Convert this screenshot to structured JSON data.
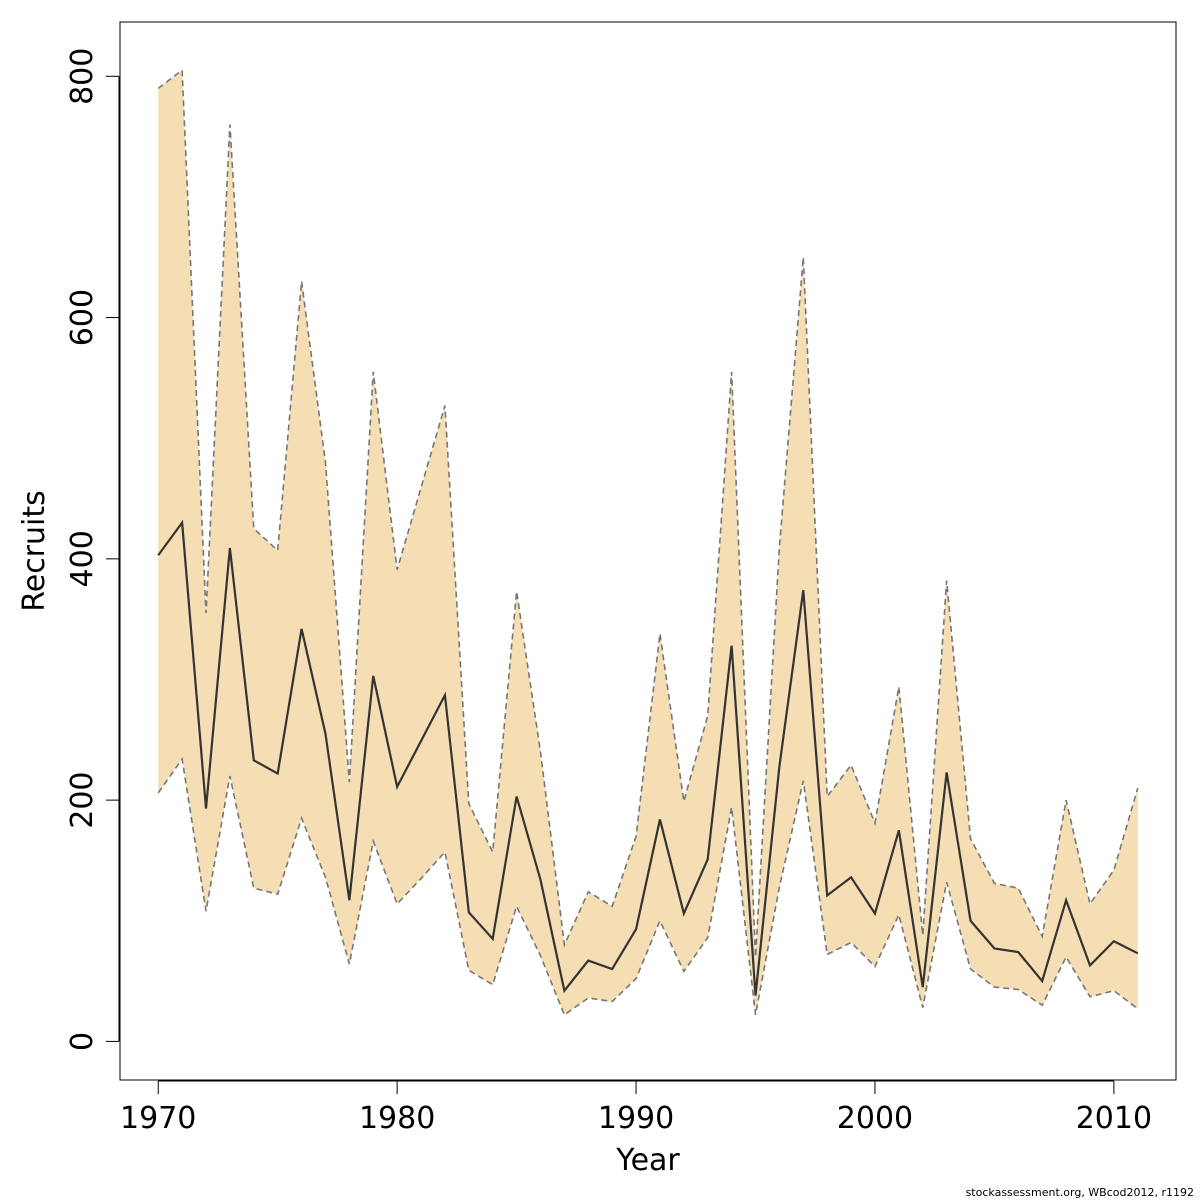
{
  "chart_data": {
    "type": "line",
    "title": "",
    "xlabel": "Year",
    "ylabel": "Recruits",
    "xlim": [
      1968.4,
      2012.6
    ],
    "ylim": [
      -32,
      845
    ],
    "x_ticks": [
      1970,
      1980,
      1990,
      2000,
      2010
    ],
    "y_ticks": [
      0,
      200,
      400,
      600,
      800
    ],
    "x_tick_labels": [
      "1970",
      "1980",
      "1990",
      "2000",
      "2010"
    ],
    "y_tick_labels": [
      "0",
      "200",
      "400",
      "600",
      "800"
    ],
    "grid": false,
    "legend": "none",
    "band_color": "#F5DEB3",
    "bound_line_color": "#777777",
    "estimate_line_color": "#333333",
    "x": [
      1970,
      1971,
      1972,
      1973,
      1974,
      1975,
      1976,
      1977,
      1978,
      1979,
      1980,
      1981,
      1982,
      1983,
      1984,
      1985,
      1986,
      1987,
      1988,
      1989,
      1990,
      1991,
      1992,
      1993,
      1994,
      1995,
      1996,
      1997,
      1998,
      1999,
      2000,
      2001,
      2002,
      2003,
      2004,
      2005,
      2006,
      2007,
      2008,
      2009,
      2010,
      2011
    ],
    "series": [
      {
        "role": "estimate",
        "values": [
          403,
          430,
          193,
          409,
          233,
          222,
          342,
          255,
          117,
          303,
          211,
          249,
          287,
          107,
          85,
          203,
          134,
          42,
          67,
          60,
          93,
          184,
          106,
          151,
          328,
          38,
          228,
          374,
          121,
          136,
          106,
          175,
          45,
          223,
          100,
          77,
          74,
          50,
          117,
          63,
          83,
          73
        ]
      },
      {
        "role": "upper",
        "values": [
          790,
          805,
          355,
          760,
          425,
          407,
          630,
          480,
          215,
          555,
          391,
          459,
          527,
          197,
          157,
          373,
          240,
          80,
          124,
          112,
          170,
          338,
          199,
          270,
          555,
          70,
          410,
          650,
          203,
          229,
          181,
          294,
          88,
          382,
          168,
          131,
          127,
          87,
          200,
          114,
          142,
          210
        ]
      },
      {
        "role": "lower",
        "values": [
          206,
          234,
          108,
          220,
          127,
          122,
          185,
          136,
          64,
          166,
          114,
          135,
          157,
          59,
          47,
          112,
          71,
          22,
          36,
          33,
          52,
          100,
          58,
          86,
          194,
          22,
          128,
          216,
          72,
          82,
          62,
          105,
          28,
          132,
          60,
          45,
          43,
          30,
          70,
          37,
          42,
          27
        ]
      }
    ]
  },
  "footer": {
    "credit": "stockassessment.org, WBcod2012, r1192"
  }
}
